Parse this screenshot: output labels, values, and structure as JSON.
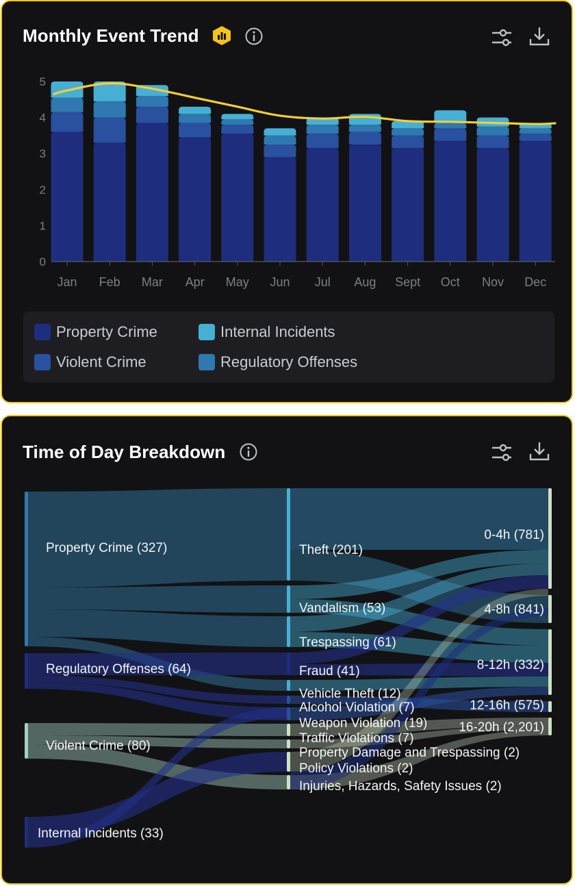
{
  "trend_card": {
    "title": "Monthly Event Trend",
    "badge_icon": "bar-chart-badge-icon",
    "icons": [
      "info-icon",
      "filter-sliders-icon",
      "download-icon"
    ]
  },
  "sankey_card": {
    "title": "Time of Day Breakdown",
    "icons": [
      "info-icon",
      "filter-sliders-icon",
      "download-icon"
    ]
  },
  "colors": {
    "property_crime": "#1e2d7e",
    "violent_crime": "#2a50a0",
    "regulatory_offenses": "#2f78b0",
    "internal_incidents": "#47afd4",
    "trend_line": "#f5cf31",
    "accent_border": "#f2c418"
  },
  "chart_data": [
    {
      "type": "bar",
      "stacked": true,
      "categories": [
        "Jan",
        "Feb",
        "Mar",
        "Apr",
        "May",
        "Jun",
        "Jul",
        "Aug",
        "Sept",
        "Oct",
        "Nov",
        "Dec"
      ],
      "series": [
        {
          "name": "Property Crime",
          "values": [
            3.6,
            3.3,
            3.85,
            3.45,
            3.55,
            2.9,
            3.15,
            3.25,
            3.15,
            3.35,
            3.15,
            3.35
          ]
        },
        {
          "name": "Violent Crime",
          "values": [
            0.55,
            0.7,
            0.45,
            0.4,
            0.25,
            0.35,
            0.4,
            0.35,
            0.35,
            0.35,
            0.35,
            0.2
          ]
        },
        {
          "name": "Regulatory Offenses",
          "values": [
            0.4,
            0.45,
            0.3,
            0.25,
            0.15,
            0.25,
            0.25,
            0.2,
            0.2,
            0.15,
            0.25,
            0.15
          ]
        },
        {
          "name": "Internal Incidents",
          "values": [
            0.45,
            0.55,
            0.3,
            0.2,
            0.15,
            0.2,
            0.2,
            0.3,
            0.2,
            0.35,
            0.25,
            0.15
          ]
        }
      ],
      "trend_line": {
        "values": [
          4.75,
          4.95,
          4.8,
          4.55,
          4.3,
          4.05,
          3.97,
          4.02,
          3.9,
          3.88,
          3.85,
          3.82
        ]
      },
      "y_ticks": [
        0,
        1,
        2,
        3,
        4,
        5
      ],
      "ylim": [
        0,
        5
      ],
      "grid": false,
      "legend_position": "bottom",
      "legend": [
        "Property Crime",
        "Internal Incidents",
        "Violent Crime",
        "Regulatory Offenses"
      ]
    },
    {
      "type": "sankey",
      "columns": [
        {
          "id": "category",
          "nodes": [
            {
              "id": "property",
              "label": "Property Crime (327)",
              "value": 327
            },
            {
              "id": "regulatory",
              "label": "Regulatory Offenses (64)",
              "value": 64
            },
            {
              "id": "violent",
              "label": "Violent Crime (80)",
              "value": 80
            },
            {
              "id": "internal",
              "label": "Internal Incidents (33)",
              "value": 33
            }
          ]
        },
        {
          "id": "event_type",
          "nodes": [
            {
              "id": "theft",
              "label": "Theft (201)",
              "value": 201
            },
            {
              "id": "vandalism",
              "label": "Vandalism (53)",
              "value": 53
            },
            {
              "id": "trespassing",
              "label": "Trespassing (61)",
              "value": 61
            },
            {
              "id": "fraud",
              "label": "Fraud (41)",
              "value": 41
            },
            {
              "id": "vehicle",
              "label": "Vehicle Theft (12)",
              "value": 12
            },
            {
              "id": "alcohol",
              "label": "Alcohol Violation (7)",
              "value": 7
            },
            {
              "id": "weapon",
              "label": "Weapon Violation (19)",
              "value": 19
            },
            {
              "id": "traffic",
              "label": "Traffic Violations (7)",
              "value": 7
            },
            {
              "id": "propdamage",
              "label": "Property Damage and Trespassing (2)",
              "value": 2
            },
            {
              "id": "policy",
              "label": "Policy Violations (2)",
              "value": 2
            },
            {
              "id": "injuries",
              "label": "Injuries, Hazards, Safety Issues (2)",
              "value": 2
            }
          ]
        },
        {
          "id": "time_of_day",
          "nodes": [
            {
              "id": "h0",
              "label": "0-4h (781)",
              "value": 781
            },
            {
              "id": "h4",
              "label": "4-8h (841)",
              "value": 841
            },
            {
              "id": "h8",
              "label": "8-12h (332)",
              "value": 332
            },
            {
              "id": "h12",
              "label": "12-16h (575)",
              "value": 575
            },
            {
              "id": "h16",
              "label": "16-20h (2,201)",
              "value": 2201
            }
          ]
        }
      ]
    }
  ]
}
